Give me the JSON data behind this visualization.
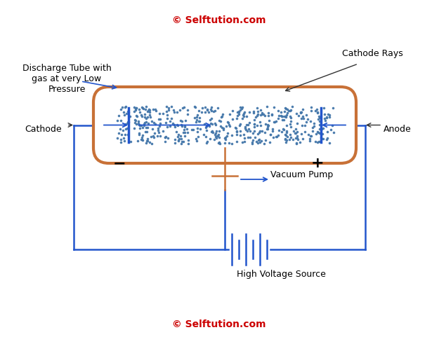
{
  "title_top": "© Selftution.com",
  "title_bottom": "© Selftution.com",
  "title_color": "#cc0000",
  "background_color": "#ffffff",
  "tube_color": "#c87137",
  "tube_linewidth": 3.0,
  "circuit_color": "#2255cc",
  "circuit_linewidth": 1.8,
  "dots_color": "#4477aa",
  "label_discharge": "Discharge Tube with\ngas at very Low\nPressure",
  "label_cathode_rays": "Cathode Rays",
  "label_cathode": "Cathode",
  "label_anode": "Anode",
  "label_vacuum": "Vacuum Pump",
  "label_hvs": "High Voltage Source",
  "label_minus": "−",
  "label_plus": "+",
  "figsize": [
    6.25,
    4.91
  ],
  "dpi": 100
}
